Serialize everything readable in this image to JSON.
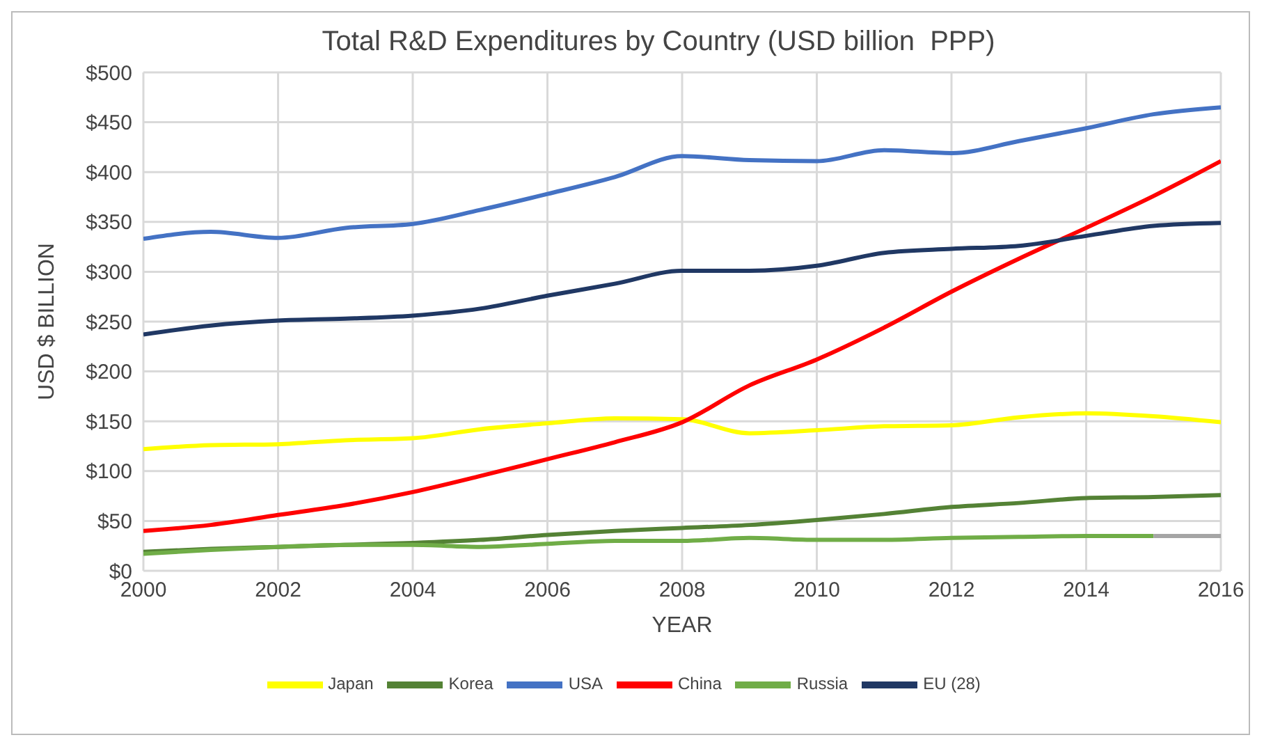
{
  "chart_data": {
    "type": "line",
    "title": "Total R&D Expenditures by Country (USD billion  PPP)",
    "xlabel": "YEAR",
    "ylabel": "USD $ BILLION",
    "x": [
      2000,
      2001,
      2002,
      2003,
      2004,
      2005,
      2006,
      2007,
      2008,
      2009,
      2010,
      2011,
      2012,
      2013,
      2014,
      2015,
      2016
    ],
    "xlim": [
      2000,
      2016
    ],
    "xticks": [
      2000,
      2002,
      2004,
      2006,
      2008,
      2010,
      2012,
      2014,
      2016
    ],
    "ylim": [
      0,
      500
    ],
    "yticks": [
      {
        "value": 0,
        "label": "$0"
      },
      {
        "value": 50,
        "label": "$50"
      },
      {
        "value": 100,
        "label": "$100"
      },
      {
        "value": 150,
        "label": "$150"
      },
      {
        "value": 200,
        "label": "$200"
      },
      {
        "value": 250,
        "label": "$250"
      },
      {
        "value": 300,
        "label": "$300"
      },
      {
        "value": 350,
        "label": "$350"
      },
      {
        "value": 400,
        "label": "$400"
      },
      {
        "value": 450,
        "label": "$450"
      },
      {
        "value": 500,
        "label": "$500"
      }
    ],
    "grid": true,
    "legend": "bottom",
    "marker": "none",
    "line_style": "solid",
    "series": [
      {
        "name": "Japan",
        "color": "#ffff00",
        "values": [
          122,
          126,
          127,
          131,
          133,
          142,
          148,
          153,
          152,
          138,
          141,
          145,
          146,
          154,
          158,
          155,
          149
        ]
      },
      {
        "name": "Korea",
        "color": "#548235",
        "values": [
          19,
          22,
          24,
          26,
          28,
          31,
          36,
          40,
          43,
          46,
          51,
          57,
          64,
          68,
          73,
          74,
          76
        ]
      },
      {
        "name": "USA",
        "color": "#4472c4",
        "values": [
          333,
          340,
          334,
          344,
          348,
          362,
          378,
          395,
          416,
          412,
          411,
          422,
          419,
          431,
          444,
          458,
          465
        ]
      },
      {
        "name": "China",
        "color": "#ff0000",
        "values": [
          40,
          46,
          56,
          66,
          79,
          95,
          112,
          129,
          149,
          186,
          212,
          244,
          280,
          313,
          344,
          376,
          411
        ]
      },
      {
        "name": "Russia",
        "color": "#70ad47",
        "values": [
          17,
          21,
          24,
          26,
          26,
          24,
          27,
          30,
          30,
          33,
          31,
          31,
          33,
          34,
          35,
          35,
          null
        ]
      },
      {
        "name": "EU (28)",
        "color": "#203864",
        "values": [
          237,
          246,
          251,
          253,
          256,
          263,
          276,
          288,
          301,
          301,
          306,
          319,
          323,
          326,
          336,
          346,
          349
        ]
      },
      {
        "color": "#a5a5a5",
        "x": [
          2015,
          2016
        ],
        "values": [
          35,
          35
        ]
      }
    ]
  }
}
